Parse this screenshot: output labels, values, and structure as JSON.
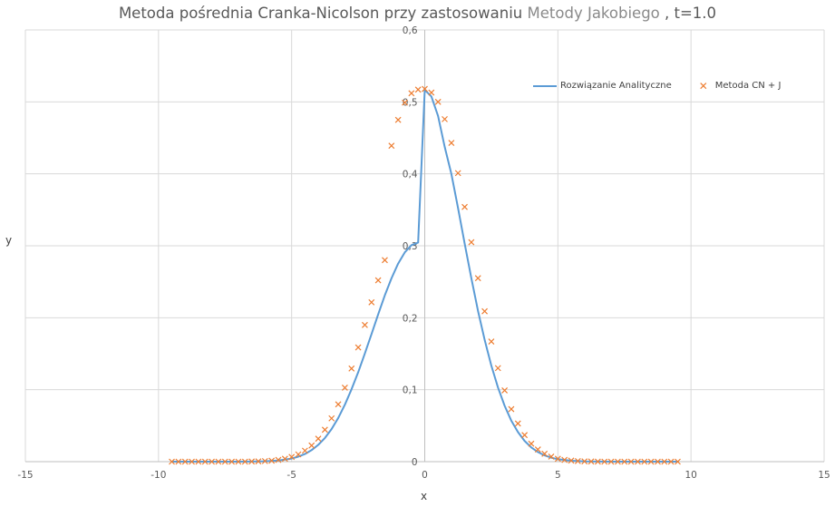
{
  "chart_data": {
    "type": "line+scatter",
    "title_main": "Metoda pośrednia Cranka-Nicolson przy zastosowaniu",
    "title_highlight": "Metody Jakobiego",
    "title_tail": " , t=1.0",
    "xlabel": "x",
    "ylabel": "y",
    "xlim": [
      -15,
      15
    ],
    "ylim": [
      0,
      0.6
    ],
    "x_ticks": [
      "-15",
      "-10",
      "-5",
      "0",
      "5",
      "10",
      "15"
    ],
    "y_ticks": [
      "0",
      "0,1",
      "0,2",
      "0,3",
      "0,4",
      "0,5",
      "0,6"
    ],
    "grid": true,
    "legend_position": "top-right",
    "series": [
      {
        "name": "Rozwiązanie Analityczne",
        "kind": "line",
        "color": "#5b9bd5",
        "x": [
          -9.5,
          -9,
          -8.5,
          -8,
          -7.5,
          -7,
          -6.5,
          -6,
          -5.5,
          -5,
          -4.75,
          -4.5,
          -4.25,
          -4,
          -3.75,
          -3.5,
          -3.25,
          -3,
          -2.75,
          -2.5,
          -2.25,
          -2,
          -1.75,
          -1.5,
          -1.25,
          -1,
          -0.75,
          -0.5,
          -0.25,
          0,
          0.25,
          0.5,
          0.75,
          1,
          1.25,
          1.5,
          1.75,
          2,
          2.25,
          2.5,
          2.75,
          3,
          3.25,
          3.5,
          3.75,
          4,
          4.25,
          4.5,
          4.75,
          5,
          5.5,
          6,
          6.5,
          7,
          7.5,
          8,
          8.5,
          9,
          9.5
        ],
        "y": [
          0,
          0,
          0,
          0,
          0,
          0,
          0.0001,
          0.0005,
          0.0016,
          0.0043,
          0.0069,
          0.0106,
          0.016,
          0.0233,
          0.0329,
          0.0453,
          0.0607,
          0.0791,
          0.1004,
          0.1243,
          0.1502,
          0.1773,
          0.2046,
          0.2309,
          0.2548,
          0.2752,
          0.2909,
          0.3009,
          0.3046,
          0.5165,
          0.5076,
          0.4804,
          0.4375,
          0.3997,
          0.3526,
          0.3033,
          0.2549,
          0.2097,
          0.1692,
          0.1336,
          0.103,
          0.0776,
          0.0571,
          0.0411,
          0.0289,
          0.0198,
          0.0133,
          0.0087,
          0.0055,
          0.0034,
          0.0012,
          0.0004,
          0.0001,
          0,
          0,
          0,
          0,
          0,
          0
        ]
      },
      {
        "name": "Metoda CN + J",
        "kind": "scatter",
        "marker": "x",
        "color": "#ed7d31",
        "x": [
          -9.5,
          -9.25,
          -9,
          -8.75,
          -8.5,
          -8.25,
          -8,
          -7.75,
          -7.5,
          -7.25,
          -7,
          -6.75,
          -6.5,
          -6.25,
          -6,
          -5.75,
          -5.5,
          -5.25,
          -5,
          -4.75,
          -4.5,
          -4.25,
          -4,
          -3.75,
          -3.5,
          -3.25,
          -3,
          -2.75,
          -2.5,
          -2.25,
          -2,
          -1.75,
          -1.5,
          -1.25,
          -1,
          -0.75,
          -0.5,
          -0.25,
          0,
          0.25,
          0.5,
          0.75,
          1,
          1.25,
          1.5,
          1.75,
          2,
          2.25,
          2.5,
          2.75,
          3,
          3.25,
          3.5,
          3.75,
          4,
          4.25,
          4.5,
          4.75,
          5,
          5.25,
          5.5,
          5.75,
          6,
          6.25,
          6.5,
          6.75,
          7,
          7.25,
          7.5,
          7.75,
          8,
          8.25,
          8.5,
          8.75,
          9,
          9.25,
          9.5
        ],
        "y": [
          0,
          0,
          0,
          0,
          0,
          0,
          0,
          0,
          0,
          0,
          0,
          0,
          0.0002,
          0.0004,
          0.0008,
          0.0014,
          0.0024,
          0.004,
          0.0065,
          0.0101,
          0.0153,
          0.0224,
          0.0319,
          0.0444,
          0.0602,
          0.0796,
          0.1028,
          0.1294,
          0.1588,
          0.1899,
          0.2214,
          0.252,
          0.2801,
          0.439,
          0.475,
          0.499,
          0.512,
          0.517,
          0.518,
          0.513,
          0.5,
          0.476,
          0.443,
          0.401,
          0.354,
          0.305,
          0.255,
          0.209,
          0.167,
          0.13,
          0.099,
          0.073,
          0.053,
          0.037,
          0.025,
          0.017,
          0.011,
          0.007,
          0.004,
          0.0025,
          0.0015,
          0.0008,
          0.0004,
          0.0002,
          0.0001,
          0,
          0,
          0,
          0,
          0,
          0,
          0,
          0,
          0,
          0,
          0,
          0
        ]
      }
    ]
  }
}
